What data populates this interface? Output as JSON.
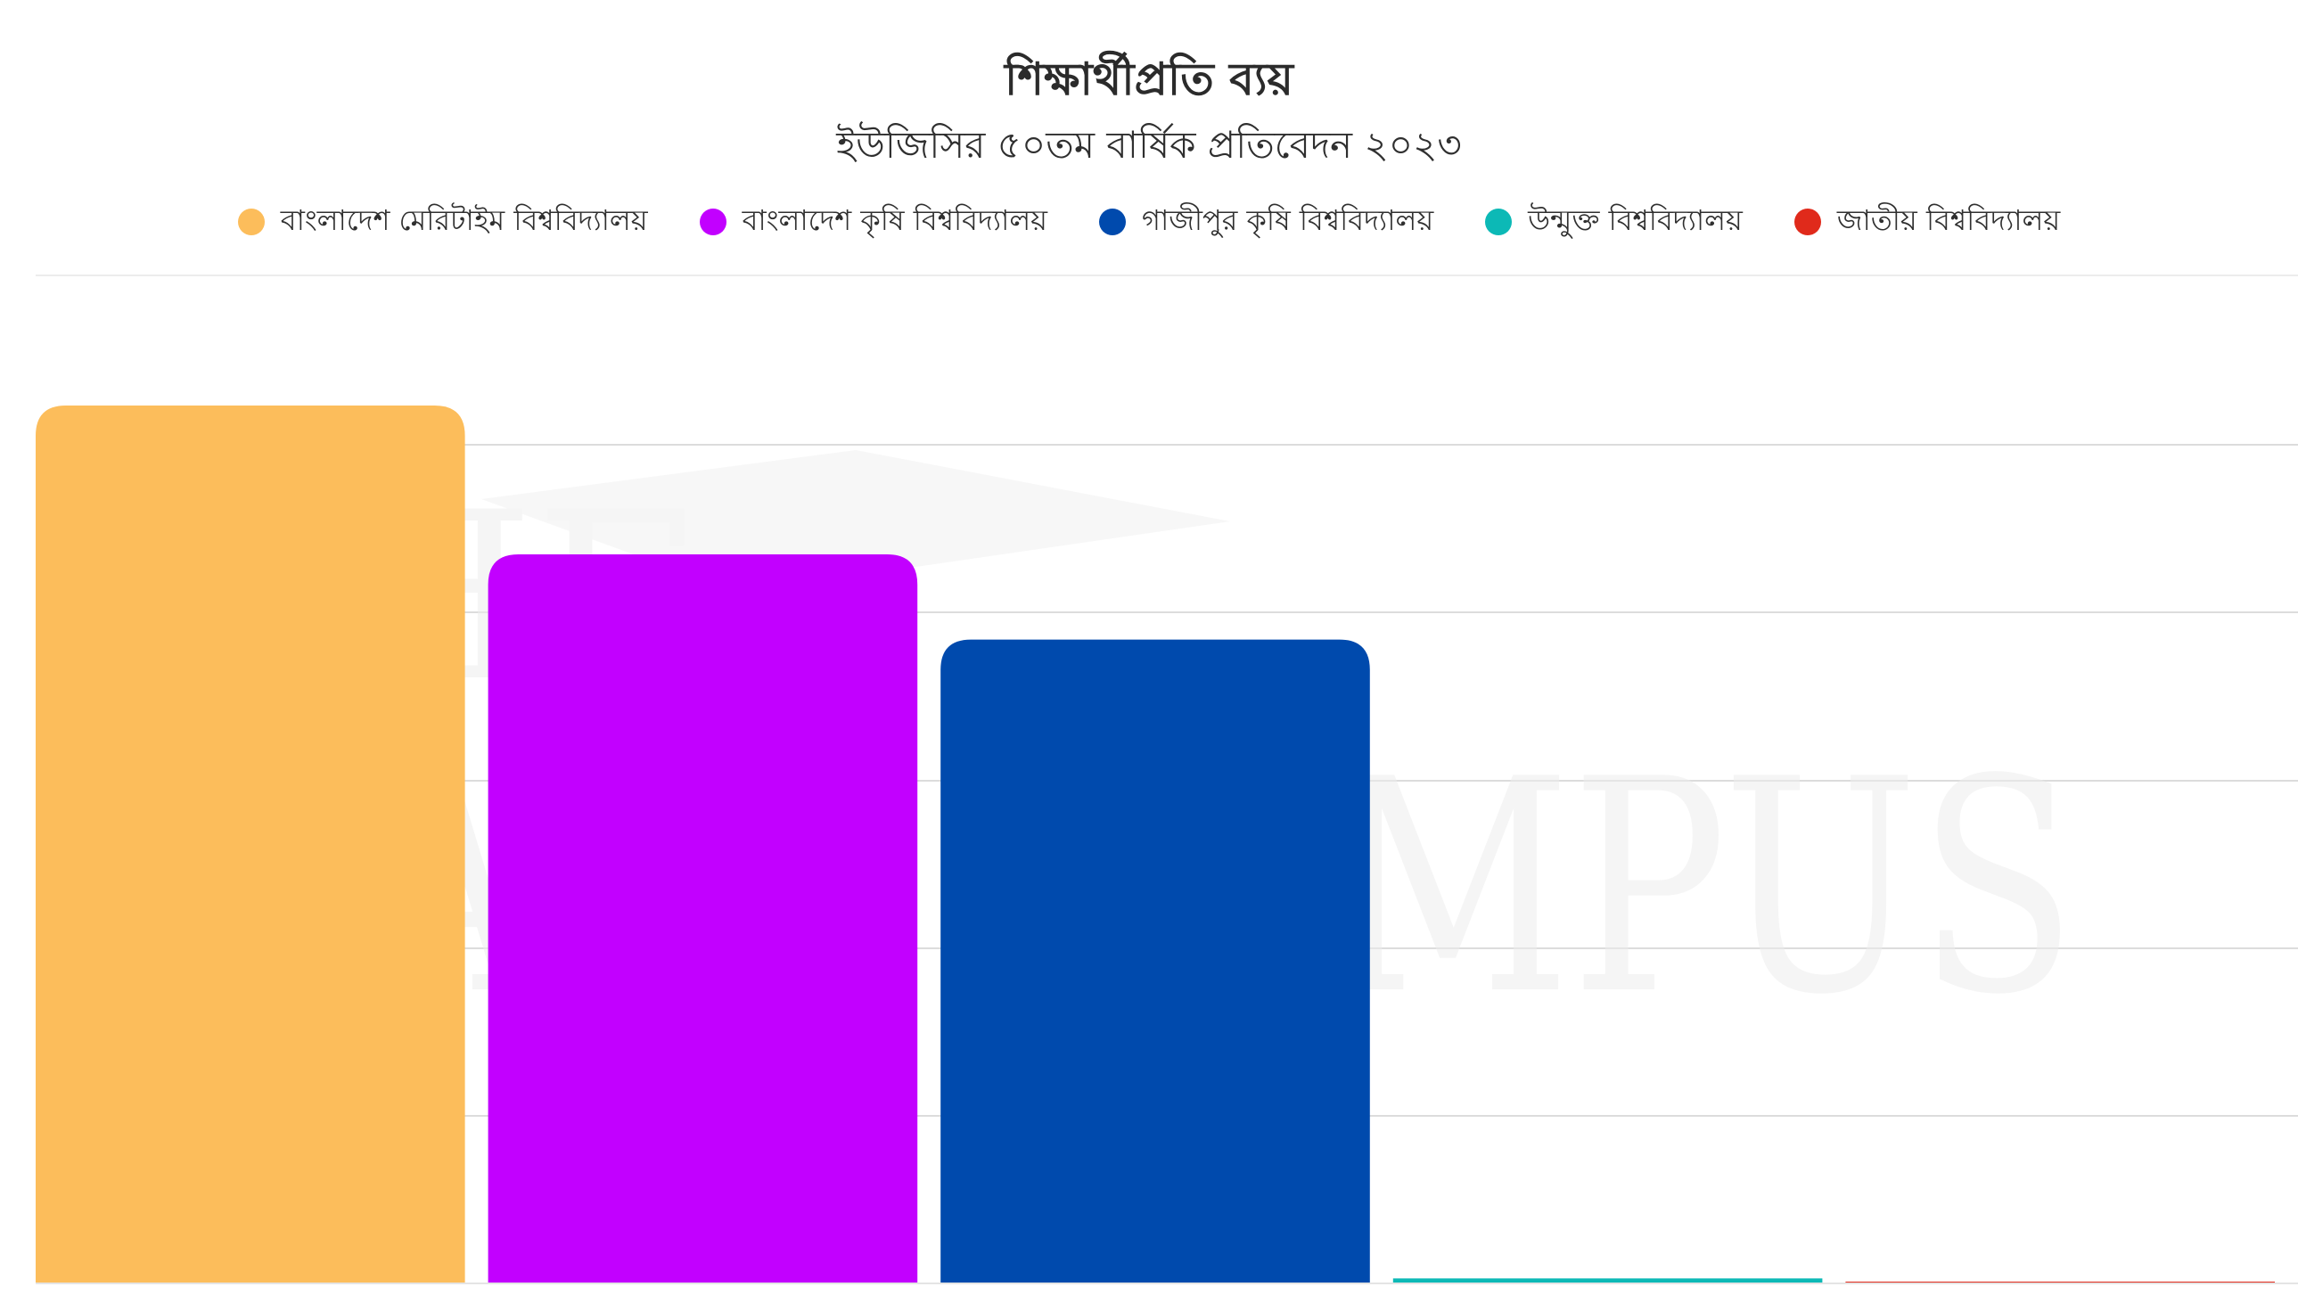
{
  "chart_data": {
    "type": "bar",
    "title": "শিক্ষার্থীপ্রতি ব্যয়",
    "subtitle": "ইউজিসির ৫০তম বার্ষিক প্রতিবেদন ২০২৩",
    "legend_position": "top",
    "grid": true,
    "ylim": [
      0,
      5.25
    ],
    "series": [
      {
        "name": "বাংলাদেশ মেরিটাইম বিশ্ববিদ্যালয়",
        "value": 5.25,
        "color": "#FCBD5B"
      },
      {
        "name": "বাংলাদেশ কৃষি বিশ্ববিদ্যালয়",
        "value": 4.36,
        "color": "#C200FF"
      },
      {
        "name": "গাজীপুর কৃষি বিশ্ববিদ্যালয়",
        "value": 3.85,
        "color": "#004AAD"
      },
      {
        "name": "উন্মুক্ত বিশ্ববিদ্যালয়",
        "value": 0.03,
        "color": "#0CB9B6"
      },
      {
        "name": "জাতীয় বিশ্ববিদ্যালয়",
        "value": 0.005,
        "color": "#E02A1B"
      }
    ]
  },
  "watermark": {
    "line1": "THE",
    "line2": "DAILY CAMPUS"
  }
}
